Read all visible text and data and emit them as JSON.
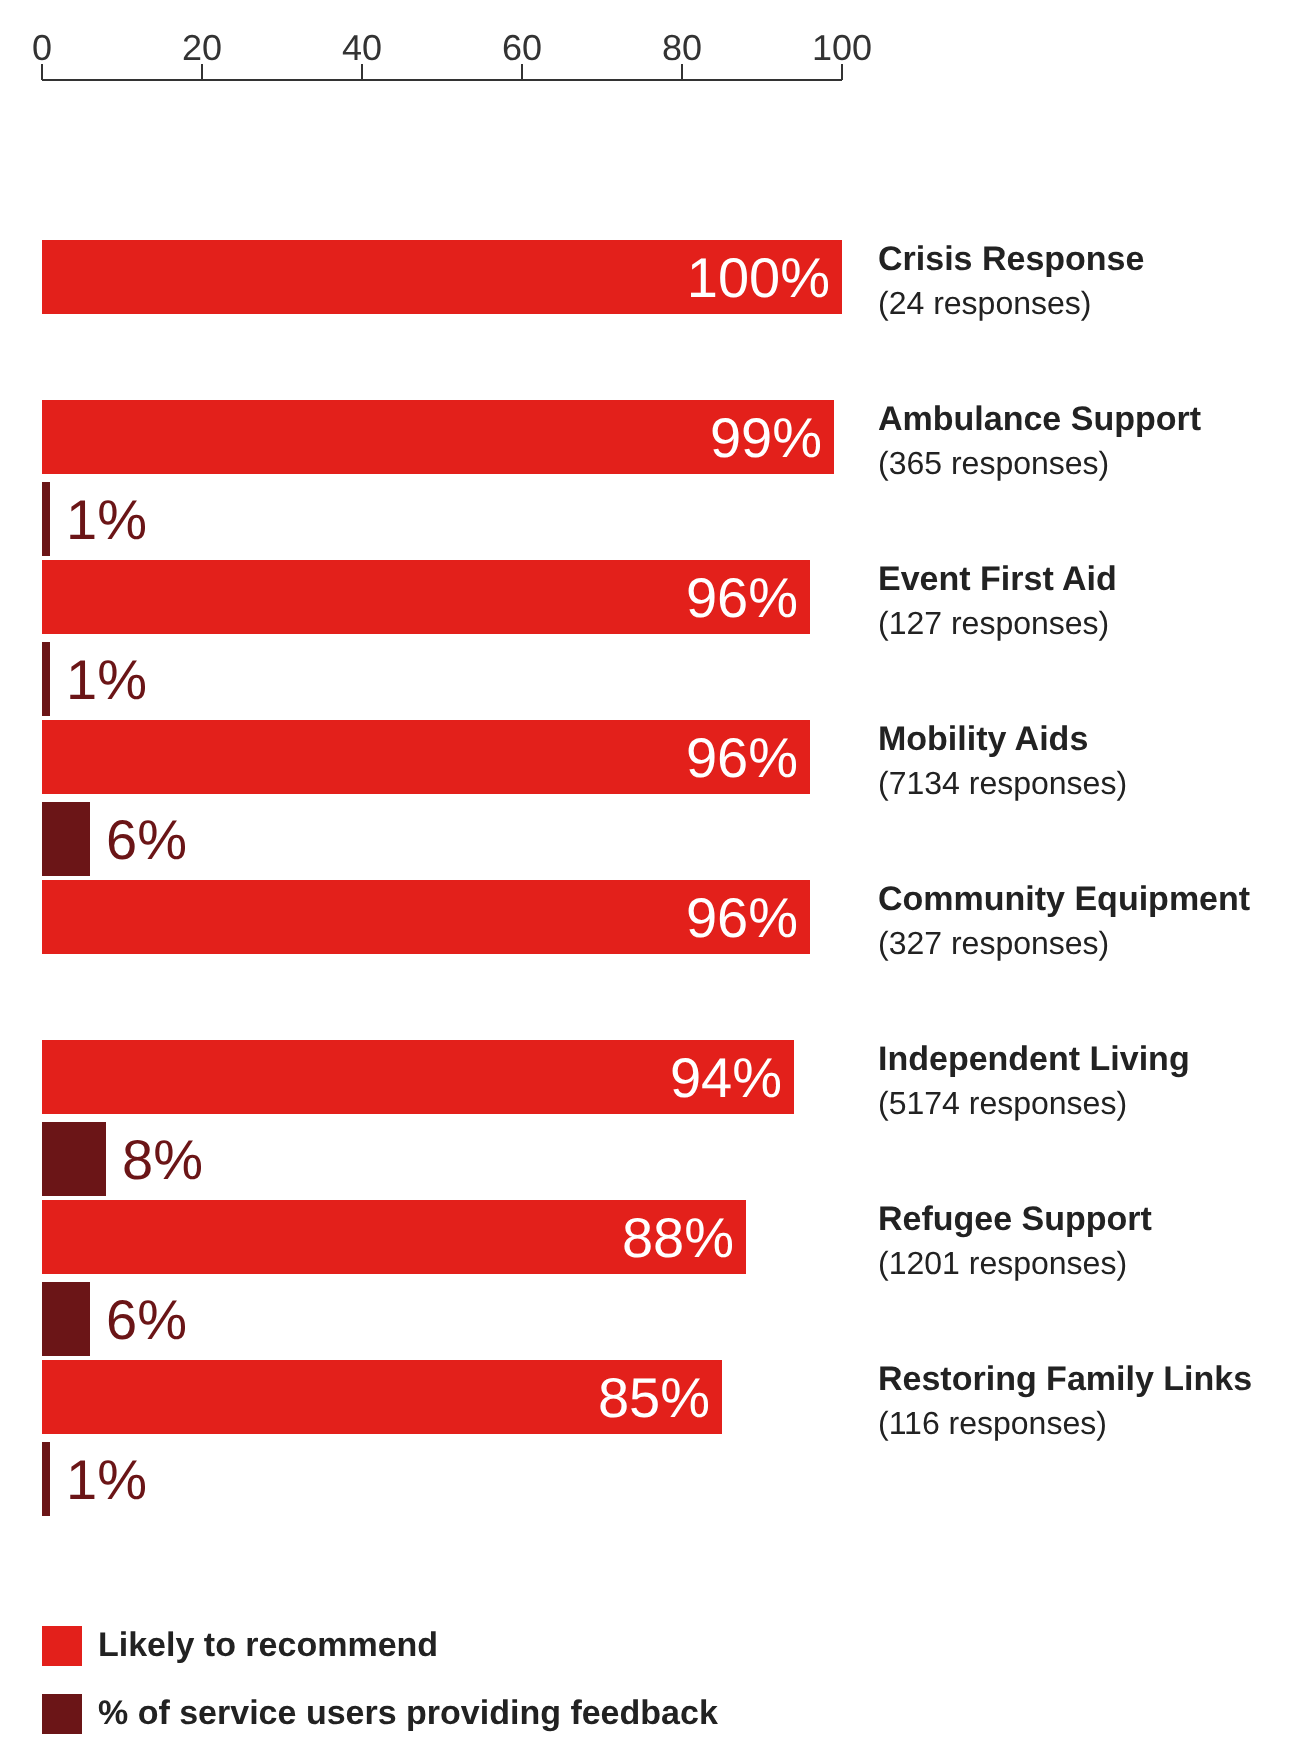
{
  "chart_data": {
    "type": "bar",
    "orientation": "horizontal",
    "categories": [
      "Crisis Response\n(24 responses)",
      "Ambulance Support\n(365 responses)",
      "Event First Aid\n(127 responses)",
      "Mobility Aids\n(7134 responses)",
      "Community Equipment\n(327 responses)",
      "Independent Living\n(5174 responses)",
      "Refugee Support\n(1201 responses)",
      "Restoring Family Links\n(116 responses)"
    ],
    "series": [
      {
        "name": "Likely to recommend",
        "color": "#e3201b",
        "values": [
          100,
          99,
          96,
          96,
          96,
          94,
          88,
          85
        ],
        "value_labels": [
          "100%",
          "99%",
          "96%",
          "96%",
          "96%",
          "94%",
          "88%",
          "85%"
        ]
      },
      {
        "name": "% of service users providing feedback",
        "color": "#6b1517",
        "values": [
          null,
          1,
          1,
          6,
          null,
          8,
          6,
          1
        ],
        "value_labels": [
          null,
          "1%",
          "1%",
          "6%",
          null,
          "8%",
          "6%",
          "1%"
        ]
      }
    ],
    "xlim": [
      0,
      100
    ],
    "xticks": [
      0,
      20,
      40,
      60,
      80,
      100
    ],
    "grid": false,
    "legend": "bottom"
  }
}
